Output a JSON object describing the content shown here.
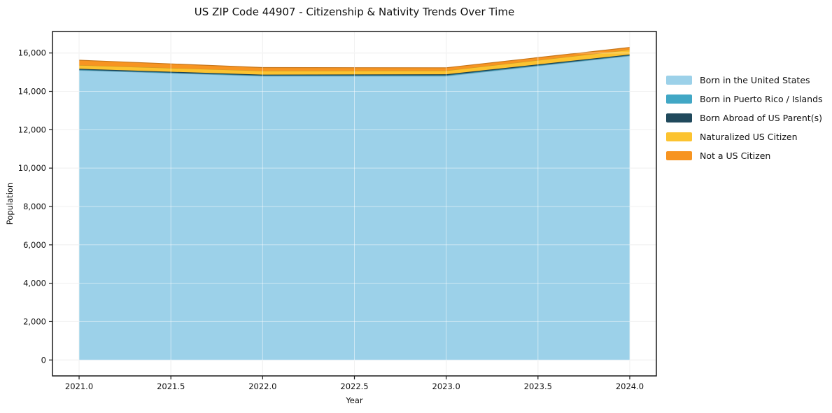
{
  "chart_data": {
    "type": "area",
    "stacked": true,
    "title": "US ZIP Code 44907 - Citizenship & Nativity Trends Over Time",
    "xlabel": "Year",
    "ylabel": "Population",
    "x": [
      2021,
      2022,
      2023,
      2024
    ],
    "series": [
      {
        "name": "Born in the United States",
        "color": "#9CD1E9",
        "values": [
          15100,
          14800,
          14800,
          15850
        ]
      },
      {
        "name": "Born in Puerto Rico / Islands",
        "color": "#41A7C5",
        "values": [
          30,
          30,
          40,
          30
        ]
      },
      {
        "name": "Born Abroad of US Parent(s)",
        "color": "#20495C",
        "values": [
          45,
          40,
          50,
          40
        ]
      },
      {
        "name": "Naturalized US Citizen",
        "color": "#FCC330",
        "values": [
          190,
          200,
          190,
          250
        ]
      },
      {
        "name": "Not a US Citizen",
        "color": "#F79421",
        "values": [
          260,
          170,
          150,
          120
        ]
      }
    ],
    "stack_totals": [
      15625,
      15240,
      15230,
      16290
    ],
    "xticks": {
      "values": [
        2021.0,
        2021.5,
        2022.0,
        2022.5,
        2023.0,
        2023.5,
        2024.0
      ],
      "labels": [
        "2021.0",
        "2021.5",
        "2022.0",
        "2022.5",
        "2023.0",
        "2023.5",
        "2024.0"
      ]
    },
    "yticks": {
      "values": [
        0,
        2000,
        4000,
        6000,
        8000,
        10000,
        12000,
        14000,
        16000
      ],
      "labels": [
        "0",
        "2,000",
        "4,000",
        "6,000",
        "8,000",
        "10,000",
        "12,000",
        "14,000",
        "16,000"
      ]
    },
    "xlim": [
      2020.855,
      2024.145
    ],
    "ylim": [
      -830,
      17120
    ],
    "grid": true,
    "legend_position": "outside-right",
    "colors": {
      "grid": "#e3e3e3",
      "axis": "#1a1a1a",
      "text": "#111111",
      "plot_background": "#ffffff"
    }
  }
}
